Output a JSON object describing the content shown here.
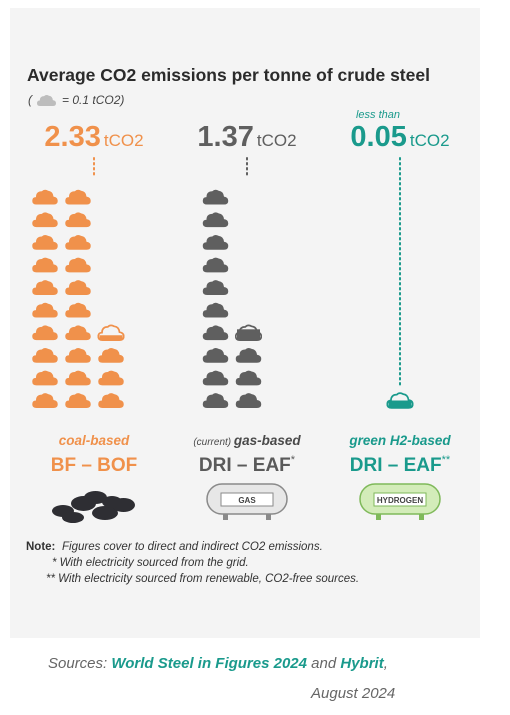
{
  "chart_data": {
    "type": "bar",
    "title": "Average CO2 emissions per tonne of crude steel",
    "legend": {
      "open": "(",
      "text": "= 0.1 tCO2)",
      "icon": "cloud-icon"
    },
    "unit": "tCO2",
    "categories": [
      {
        "top": "coal-based",
        "bottom": "BF – BOF",
        "prefix": "",
        "suffix": "",
        "icon": "coal-icon"
      },
      {
        "top": "gas-based",
        "bottom": "DRI – EAF",
        "prefix": "(current)",
        "suffix": "*",
        "icon": "gas-tank-icon",
        "tank_label": "GAS"
      },
      {
        "top": "green H2-based",
        "bottom": "DRI – EAF",
        "prefix": "",
        "suffix": "**",
        "icon": "hydrogen-tank-icon",
        "tank_label": "HYDROGEN"
      }
    ],
    "values": [
      2.33,
      1.37,
      0.05
    ],
    "value_labels": [
      {
        "pre": "",
        "number": "2.33",
        "unit": "tCO2"
      },
      {
        "pre": "",
        "number": "1.37",
        "unit": "tCO2"
      },
      {
        "pre": "less than",
        "number": "0.05",
        "unit": "tCO2"
      }
    ],
    "colors": [
      "#f0914b",
      "#5f5f5f",
      "#1a9a8c"
    ]
  },
  "note": {
    "label": "Note:",
    "lines": [
      "Figures cover to direct and indirect CO2 emissions.",
      "* With electricity sourced from the grid.",
      "** With electricity sourced from renewable, CO2-free sources."
    ]
  },
  "sources": {
    "prefix": "Sources:",
    "link1": "World Steel in Figures 2024",
    "conj": "and",
    "link2": "Hybrit",
    "comma": ",",
    "date": "August 2024"
  },
  "colors": {
    "panel": "#f4f4f4",
    "text": "#2b2b2b",
    "muted": "#666666"
  }
}
